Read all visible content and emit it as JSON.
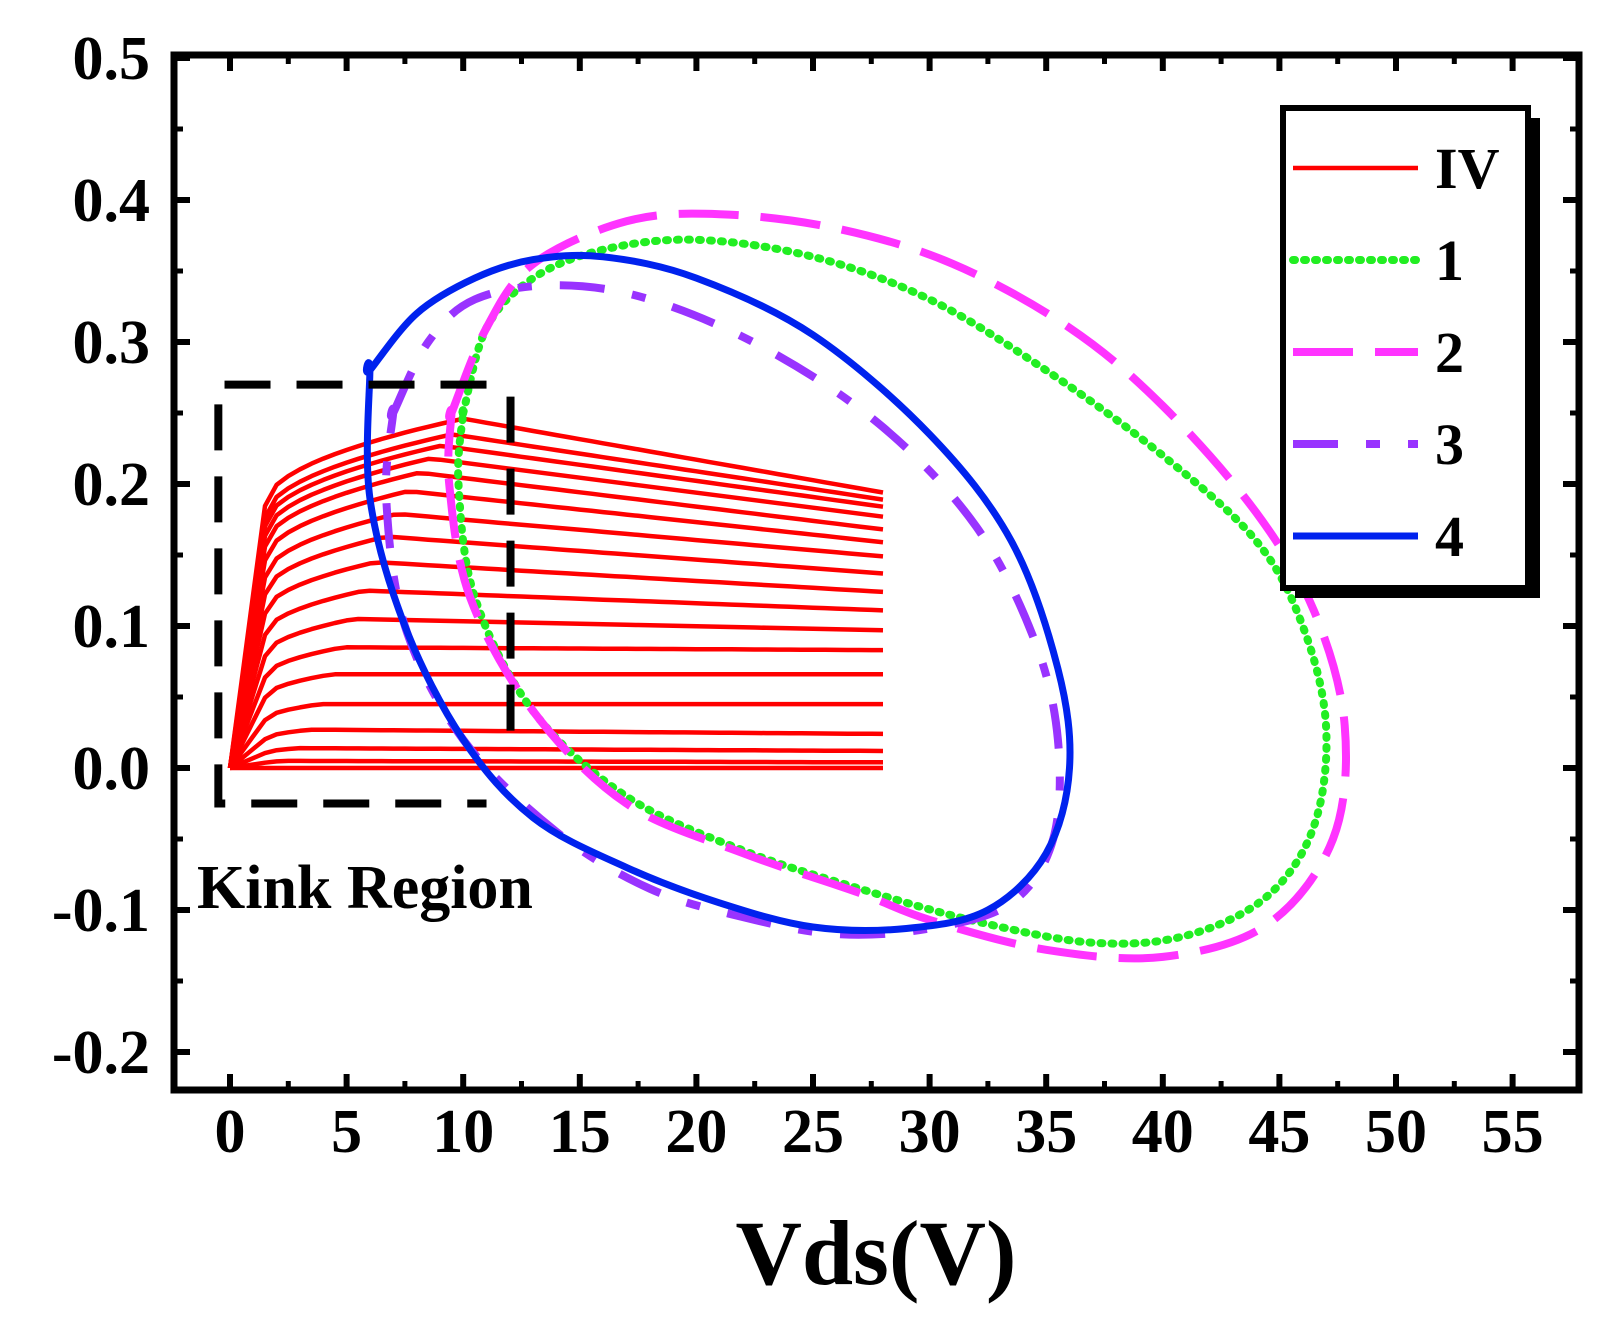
{
  "chart_data": {
    "type": "line",
    "title": "",
    "xlabel": "Vds(V)",
    "ylabel": "",
    "xlim": [
      -2.5,
      55
    ],
    "ylim": [
      -0.2,
      0.5
    ],
    "xticks": [
      0,
      5,
      10,
      15,
      20,
      25,
      30,
      35,
      40,
      45,
      50,
      55
    ],
    "yticks": [
      -0.2,
      -0.1,
      0.0,
      0.1,
      0.2,
      0.3,
      0.4,
      0.5
    ],
    "xtick_labels": [
      "0",
      "5",
      "10",
      "15",
      "20",
      "25",
      "30",
      "35",
      "40",
      "45",
      "50",
      "55"
    ],
    "ytick_labels": [
      "-0.2",
      "-0.1",
      "0.0",
      "0.1",
      "0.2",
      "0.3",
      "0.4",
      "0.5"
    ],
    "grid": false,
    "legend_position": "top-right",
    "iv_curves": {
      "name": "IV",
      "color": "#ff0000",
      "style": "solid",
      "vds_max": 28,
      "end_values": [
        0.0,
        0.004,
        0.012,
        0.024,
        0.045,
        0.066,
        0.083,
        0.097,
        0.111,
        0.124,
        0.137,
        0.149,
        0.159,
        0.168,
        0.177,
        0.184,
        0.189,
        0.194
      ],
      "peak_values": [
        0.0,
        0.005,
        0.014,
        0.027,
        0.045,
        0.066,
        0.085,
        0.105,
        0.125,
        0.145,
        0.163,
        0.179,
        0.195,
        0.208,
        0.218,
        0.227,
        0.235,
        0.246
      ]
    },
    "series": [
      {
        "name": "1",
        "color": "#22ee22",
        "style": "dotted",
        "points": [
          [
            10,
            0.25
          ],
          [
            11,
            0.31
          ],
          [
            13,
            0.345
          ],
          [
            16,
            0.365
          ],
          [
            20,
            0.372
          ],
          [
            25,
            0.36
          ],
          [
            30,
            0.33
          ],
          [
            35,
            0.28
          ],
          [
            40,
            0.22
          ],
          [
            44,
            0.16
          ],
          [
            46,
            0.1
          ],
          [
            47,
            0.03
          ],
          [
            46.5,
            -0.04
          ],
          [
            44.5,
            -0.09
          ],
          [
            41,
            -0.118
          ],
          [
            37,
            -0.123
          ],
          [
            32,
            -0.108
          ],
          [
            27,
            -0.085
          ],
          [
            22,
            -0.058
          ],
          [
            17,
            -0.02
          ],
          [
            13,
            0.04
          ],
          [
            10.5,
            0.12
          ],
          [
            9.8,
            0.2
          ],
          [
            10,
            0.25
          ]
        ]
      },
      {
        "name": "2",
        "color": "#ff33ff",
        "style": "dash",
        "points": [
          [
            9.5,
            0.25
          ],
          [
            11,
            0.31
          ],
          [
            13,
            0.355
          ],
          [
            17,
            0.385
          ],
          [
            21,
            0.39
          ],
          [
            26,
            0.38
          ],
          [
            31,
            0.355
          ],
          [
            36,
            0.31
          ],
          [
            40,
            0.255
          ],
          [
            44,
            0.18
          ],
          [
            46.5,
            0.11
          ],
          [
            47.8,
            0.03
          ],
          [
            47.3,
            -0.05
          ],
          [
            44.5,
            -0.11
          ],
          [
            40,
            -0.133
          ],
          [
            35,
            -0.128
          ],
          [
            30,
            -0.107
          ],
          [
            27,
            -0.088
          ],
          [
            22,
            -0.06
          ],
          [
            17,
            -0.025
          ],
          [
            13,
            0.04
          ],
          [
            10.3,
            0.12
          ],
          [
            9.4,
            0.2
          ],
          [
            9.5,
            0.25
          ]
        ]
      },
      {
        "name": "3",
        "color": "#9933ff",
        "style": "longdash",
        "points": [
          [
            7,
            0.25
          ],
          [
            8.5,
            0.3
          ],
          [
            10.5,
            0.33
          ],
          [
            14,
            0.34
          ],
          [
            18,
            0.33
          ],
          [
            23,
            0.295
          ],
          [
            28,
            0.24
          ],
          [
            32,
            0.17
          ],
          [
            34.5,
            0.09
          ],
          [
            35.5,
            0.02
          ],
          [
            35.3,
            -0.05
          ],
          [
            33.5,
            -0.095
          ],
          [
            30,
            -0.113
          ],
          [
            26,
            -0.117
          ],
          [
            22,
            -0.105
          ],
          [
            18,
            -0.085
          ],
          [
            14,
            -0.045
          ],
          [
            10,
            0.02
          ],
          [
            7.5,
            0.1
          ],
          [
            6.7,
            0.19
          ],
          [
            7,
            0.25
          ]
        ]
      },
      {
        "name": "4",
        "color": "#0022ee",
        "style": "solid",
        "points": [
          [
            6,
            0.28
          ],
          [
            8,
            0.32
          ],
          [
            10.5,
            0.345
          ],
          [
            13,
            0.358
          ],
          [
            16,
            0.36
          ],
          [
            20,
            0.345
          ],
          [
            25,
            0.305
          ],
          [
            30,
            0.235
          ],
          [
            33.5,
            0.16
          ],
          [
            35.5,
            0.07
          ],
          [
            36,
            0.0
          ],
          [
            35,
            -0.06
          ],
          [
            32.5,
            -0.1
          ],
          [
            29,
            -0.113
          ],
          [
            25,
            -0.112
          ],
          [
            21,
            -0.095
          ],
          [
            17,
            -0.07
          ],
          [
            13,
            -0.035
          ],
          [
            10,
            0.02
          ],
          [
            7.5,
            0.1
          ],
          [
            6,
            0.19
          ],
          [
            6,
            0.28
          ]
        ]
      }
    ],
    "legend": [
      {
        "label": "IV",
        "color": "#ff0000",
        "style": "solid"
      },
      {
        "label": "1",
        "color": "#22ee22",
        "style": "dotted"
      },
      {
        "label": "2",
        "color": "#ff33ff",
        "style": "dash"
      },
      {
        "label": "3",
        "color": "#9933ff",
        "style": "longdash"
      },
      {
        "label": "4",
        "color": "#0022ee",
        "style": "solid"
      }
    ],
    "annotations": [
      {
        "text": "Kink Region",
        "box_x": [
          -0.5,
          11
        ],
        "box_y": [
          -0.025,
          0.27
        ],
        "color": "#000000",
        "style": "dash"
      }
    ]
  }
}
